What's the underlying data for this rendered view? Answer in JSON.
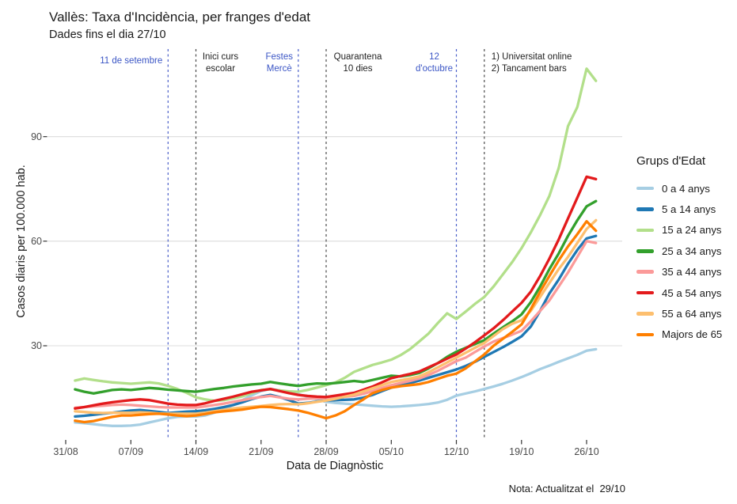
{
  "chart_data": {
    "type": "line",
    "title": "Vallès: Taxa d'Incidència, per franges d'edat",
    "subtitle": "Dades fins el dia 27/10",
    "xlabel": "Data de Diagnòstic",
    "ylabel": "Casos diaris per 100.000 hab.",
    "note": "Nota: Actualitzat el  29/10",
    "legend_title": "Grups d'Edat",
    "legend_position": "right",
    "grid": "horizontal-only",
    "ylim": [
      0,
      117
    ],
    "y_ticks": [
      30,
      60,
      90
    ],
    "x_start_date": "01/09",
    "x_end_date": "27/10",
    "x_ticks": [
      {
        "label": "31/08",
        "day": 0
      },
      {
        "label": "07/09",
        "day": 7
      },
      {
        "label": "14/09",
        "day": 14
      },
      {
        "label": "21/09",
        "day": 21
      },
      {
        "label": "28/09",
        "day": 28
      },
      {
        "label": "05/10",
        "day": 35
      },
      {
        "label": "12/10",
        "day": 42
      },
      {
        "label": "19/10",
        "day": 49
      },
      {
        "label": "26/10",
        "day": 56
      }
    ],
    "events": [
      {
        "day": 11,
        "lines": [
          "11 de setembre"
        ],
        "line_color": "#4a5fc9",
        "text_color": "#3a55c5",
        "align": "right",
        "dx": -7
      },
      {
        "day": 14,
        "lines": [
          "Inici curs",
          "escolar"
        ],
        "line_color": "#4a4a4a",
        "text_color": "#1f1f1f",
        "align": "center",
        "dx": 31
      },
      {
        "day": 25,
        "lines": [
          "Festes",
          "Mercè"
        ],
        "line_color": "#4a5fc9",
        "text_color": "#3a55c5",
        "align": "center",
        "dx": -24
      },
      {
        "day": 28,
        "lines": [
          "Quarantena",
          "10 dies"
        ],
        "line_color": "#4a4a4a",
        "text_color": "#1f1f1f",
        "align": "center",
        "dx": 40
      },
      {
        "day": 42,
        "lines": [
          "12",
          "d'octubre"
        ],
        "line_color": "#4a5fc9",
        "text_color": "#3a55c5",
        "align": "center",
        "dx": -28
      },
      {
        "day": 45,
        "lines": [
          "1) Universitat online",
          "2) Tancament bars"
        ],
        "line_color": "#4a4a4a",
        "text_color": "#1f1f1f",
        "align": "left",
        "dx": 9
      }
    ],
    "colors": {
      "grid": "#dcdcdc",
      "tick": "#333333",
      "axis_text": "#4a4a4a"
    },
    "series": [
      {
        "name": "0 a 4 anys",
        "color": "#a6cee3",
        "start_day": 1,
        "values": [
          8.0,
          7.8,
          7.5,
          7.2,
          7.0,
          7.0,
          7.1,
          7.4,
          8.0,
          8.6,
          9.2,
          9.6,
          9.7,
          9.7,
          10.0,
          10.8,
          11.8,
          13.0,
          14.4,
          15.8,
          17.0,
          17.6,
          17.2,
          16.7,
          16.1,
          15.4,
          14.6,
          13.9,
          13.6,
          13.4,
          13.2,
          13.0,
          12.8,
          12.6,
          12.5,
          12.6,
          12.8,
          13.0,
          13.3,
          13.7,
          14.5,
          15.7,
          16.3,
          16.9,
          17.6,
          18.3,
          19.1,
          20.0,
          21.0,
          22.1,
          23.3,
          24.3,
          25.4,
          26.4,
          27.4,
          28.6,
          29.0
        ]
      },
      {
        "name": "5 a 14 anys",
        "color": "#1f78b4",
        "start_day": 1,
        "values": [
          9.7,
          9.9,
          10.2,
          10.5,
          10.8,
          11.1,
          11.4,
          11.6,
          11.3,
          11.0,
          10.7,
          10.9,
          11.1,
          11.2,
          11.5,
          11.9,
          12.4,
          13.0,
          13.8,
          14.7,
          15.4,
          15.9,
          15.3,
          14.4,
          13.4,
          13.6,
          14.0,
          14.3,
          14.4,
          14.5,
          14.6,
          15.1,
          15.9,
          17.0,
          18.0,
          18.7,
          19.3,
          20.0,
          20.8,
          21.6,
          22.4,
          23.2,
          24.2,
          25.4,
          26.8,
          28.2,
          29.6,
          31.1,
          32.7,
          35.5,
          40.0,
          45.0,
          49.0,
          53.5,
          57.5,
          60.8,
          61.5
        ]
      },
      {
        "name": "15 a 24 anys",
        "color": "#b2df8a",
        "start_day": 1,
        "values": [
          20.0,
          20.6,
          20.2,
          19.8,
          19.5,
          19.3,
          19.1,
          19.3,
          19.5,
          19.2,
          18.5,
          17.6,
          16.5,
          15.2,
          14.6,
          14.2,
          14.4,
          14.9,
          15.5,
          16.4,
          17.3,
          17.5,
          17.2,
          16.9,
          16.8,
          17.3,
          18.0,
          18.7,
          19.5,
          20.8,
          22.5,
          23.5,
          24.5,
          25.2,
          26.0,
          27.3,
          29.0,
          31.2,
          33.5,
          36.5,
          39.3,
          37.7,
          39.8,
          42.0,
          44.0,
          47.0,
          50.5,
          54.0,
          58.0,
          62.5,
          67.5,
          73.0,
          81.0,
          93.0,
          98.5,
          109.5,
          106.0
        ]
      },
      {
        "name": "25 a 34 anys",
        "color": "#33a02c",
        "start_day": 1,
        "values": [
          17.5,
          16.8,
          16.3,
          16.8,
          17.3,
          17.5,
          17.3,
          17.6,
          17.9,
          17.7,
          17.4,
          17.2,
          17.0,
          16.8,
          17.2,
          17.6,
          17.9,
          18.3,
          18.6,
          18.9,
          19.1,
          19.6,
          19.2,
          18.8,
          18.5,
          18.9,
          19.2,
          19.1,
          19.3,
          19.6,
          19.9,
          19.6,
          20.2,
          20.8,
          21.4,
          21.2,
          21.6,
          22.2,
          23.5,
          25.0,
          26.8,
          28.3,
          29.4,
          30.5,
          31.6,
          33.5,
          35.3,
          37.0,
          39.0,
          42.5,
          47.0,
          52.0,
          56.5,
          61.5,
          66.0,
          70.0,
          71.5
        ]
      },
      {
        "name": "35 a 44 anys",
        "color": "#fb9a99",
        "start_day": 1,
        "values": [
          12.2,
          12.4,
          12.6,
          12.8,
          13.0,
          13.1,
          13.0,
          12.8,
          12.6,
          12.4,
          12.3,
          12.3,
          12.3,
          12.3,
          12.6,
          13.0,
          13.4,
          13.9,
          14.4,
          14.9,
          15.3,
          15.6,
          15.2,
          14.8,
          14.6,
          14.8,
          14.9,
          15.0,
          15.2,
          15.4,
          15.6,
          16.2,
          17.0,
          17.9,
          18.7,
          19.3,
          19.9,
          20.6,
          21.6,
          22.8,
          24.2,
          25.6,
          26.6,
          28.2,
          29.8,
          31.2,
          32.2,
          33.2,
          34.3,
          37.0,
          40.0,
          43.0,
          47.0,
          51.0,
          55.5,
          60.0,
          59.5
        ]
      },
      {
        "name": "45 a 54 anys",
        "color": "#e31a1c",
        "start_day": 1,
        "values": [
          12.0,
          12.4,
          12.9,
          13.4,
          13.8,
          14.1,
          14.4,
          14.6,
          14.4,
          13.9,
          13.4,
          13.1,
          13.0,
          13.0,
          13.5,
          14.2,
          14.8,
          15.4,
          16.1,
          16.8,
          17.2,
          17.6,
          17.0,
          16.4,
          15.9,
          15.6,
          15.4,
          15.3,
          15.7,
          16.1,
          16.5,
          17.4,
          18.3,
          19.5,
          20.7,
          21.3,
          21.9,
          22.6,
          23.8,
          25.0,
          26.3,
          27.5,
          29.2,
          31.0,
          33.0,
          35.0,
          37.3,
          39.8,
          42.3,
          45.5,
          50.0,
          55.0,
          60.5,
          66.5,
          72.5,
          78.5,
          77.8
        ]
      },
      {
        "name": "55 a 64 anys",
        "color": "#fdbf6f",
        "start_day": 1,
        "values": [
          11.2,
          11.0,
          10.8,
          10.7,
          10.8,
          10.8,
          10.8,
          10.9,
          10.8,
          10.6,
          10.5,
          10.5,
          10.5,
          10.5,
          10.8,
          11.2,
          11.6,
          12.0,
          12.3,
          12.5,
          12.7,
          13.0,
          13.2,
          13.3,
          13.2,
          13.5,
          13.9,
          14.3,
          14.8,
          15.4,
          16.0,
          16.9,
          17.8,
          18.7,
          19.6,
          20.1,
          20.6,
          21.2,
          22.4,
          23.8,
          25.2,
          26.6,
          28.0,
          29.4,
          30.8,
          32.8,
          34.8,
          36.3,
          37.3,
          40.0,
          44.0,
          48.0,
          52.0,
          55.5,
          59.5,
          63.5,
          66.0
        ]
      },
      {
        "name": "Majors de 65",
        "color": "#ff7f00",
        "start_day": 1,
        "values": [
          8.5,
          8.1,
          8.4,
          9.0,
          9.6,
          10.0,
          10.0,
          10.2,
          10.4,
          10.5,
          10.3,
          10.0,
          9.8,
          10.0,
          10.4,
          10.9,
          11.2,
          11.4,
          11.7,
          12.1,
          12.5,
          12.4,
          12.1,
          11.8,
          11.4,
          10.8,
          10.0,
          9.2,
          10.0,
          11.2,
          13.0,
          14.6,
          16.4,
          17.3,
          18.0,
          18.4,
          18.7,
          19.0,
          19.6,
          20.5,
          21.4,
          22.0,
          23.5,
          25.5,
          27.5,
          30.0,
          32.0,
          34.0,
          36.1,
          40.5,
          45.5,
          50.0,
          54.5,
          58.5,
          62.0,
          65.7,
          63.0
        ]
      }
    ]
  }
}
